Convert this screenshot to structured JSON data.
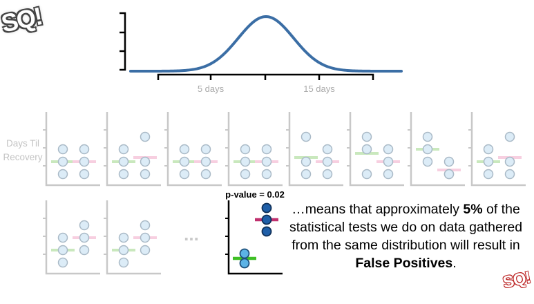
{
  "logo": {
    "text": "SQ!"
  },
  "distribution": {
    "x_ticks": [
      "5 days",
      "15 days"
    ]
  },
  "ylabel": "Days Til Recovery",
  "experiments": [
    {
      "green": [
        3,
        2,
        1
      ],
      "pink": [
        3,
        2,
        1
      ]
    },
    {
      "green": [
        3,
        2,
        1
      ],
      "pink": [
        4,
        2,
        1
      ]
    },
    {
      "green": [
        3,
        2,
        1
      ],
      "pink": [
        3,
        2,
        1
      ]
    },
    {
      "green": [
        3,
        2,
        1
      ],
      "pink": [
        3,
        2,
        1
      ]
    },
    {
      "green": [
        4,
        2,
        1
      ],
      "pink": [
        3,
        2,
        1
      ]
    },
    {
      "green": [
        4,
        3,
        1
      ],
      "pink": [
        3,
        2,
        1
      ]
    },
    {
      "green": [
        4,
        3,
        2
      ],
      "pink": [
        2,
        1,
        1
      ]
    },
    {
      "green": [
        3,
        2,
        1
      ],
      "pink": [
        4,
        2,
        1
      ]
    },
    {
      "green": [
        3,
        2,
        1
      ],
      "pink": [
        4,
        3,
        2
      ]
    },
    {
      "green": [
        3,
        2,
        1
      ],
      "pink": [
        4,
        3,
        2
      ]
    }
  ],
  "ellipsis": "...",
  "pvalue_panel": {
    "label": "p-value = 0.02",
    "green": [
      1,
      1
    ],
    "red": [
      3,
      2,
      3
    ]
  },
  "caption": {
    "part1": "…means that approximately ",
    "bold1": "5%",
    "part2": " of the statistical tests we do on data gathered from the same distribution will result in ",
    "bold2": "False Positives",
    "part3": "."
  },
  "colors": {
    "curve": "#3b6ea5",
    "axis": "#000000",
    "faded_axis": "#c8c8c8",
    "point_fill": "#dcecf7",
    "point_stroke": "#a9b9c6",
    "green_mean": "#c9e8bd",
    "pink_mean": "#f7cfe0",
    "strong_green": "#3fbf25",
    "strong_red": "#c0306e",
    "light_blue_point": "#5cb3e6",
    "dark_blue_point": "#1f5fa8"
  }
}
